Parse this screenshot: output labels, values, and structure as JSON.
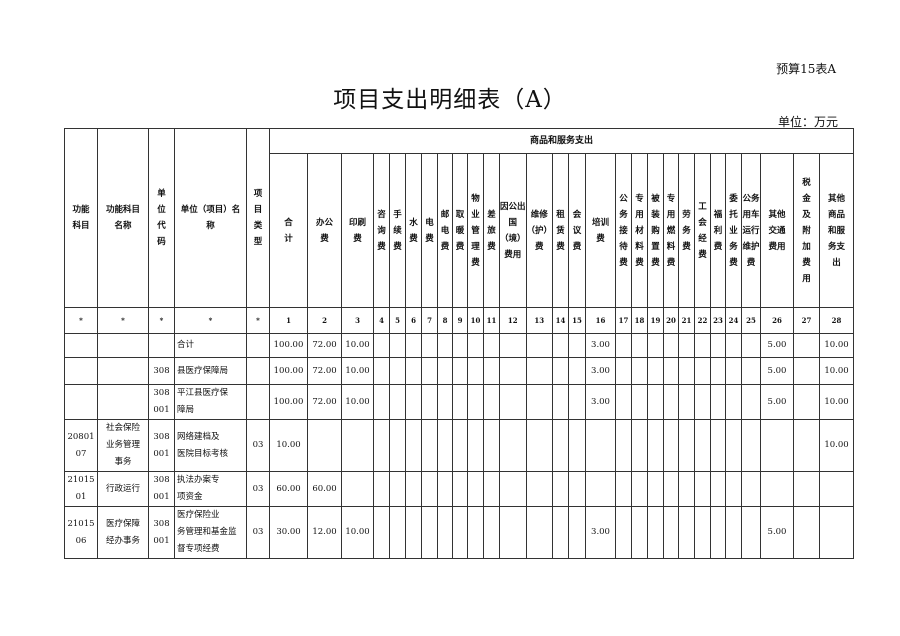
{
  "header": {
    "form_no": "预算15表A",
    "title": "项目支出明细表（A）",
    "unit": "单位：万元"
  },
  "table": {
    "group_label": "商品和服务支出",
    "fixed_headers": [
      "功能\n科目",
      "功能科目\n名称",
      "单\n位\n代\n码",
      "单位（项目）名\n称",
      "项\n目\n类\n型"
    ],
    "expense_headers": [
      "合\n计",
      "办公\n费",
      "印刷\n费",
      "咨询费",
      "手续费",
      "水费",
      "电费",
      "邮电费",
      "取暖费",
      "物业管理费",
      "差旅费",
      "因公出国（境）费用",
      "维修（护）费",
      "租赁费",
      "会议费",
      "培训\n费",
      "公务接待费",
      "专用材料费",
      "被装购置费",
      "专用燃料费",
      "劳务费",
      "工会经费",
      "福利费",
      "委托业务费",
      "公务用车运行维护费",
      "其他\n交通\n费用",
      "税\n金\n及\n附\n加\n费\n用",
      "其他\n商品\n和服\n务支\n出"
    ],
    "number_row": [
      "*",
      "*",
      "*",
      "*",
      "*",
      "1",
      "2",
      "3",
      "4",
      "5",
      "6",
      "7",
      "8",
      "9",
      "10",
      "11",
      "12",
      "13",
      "14",
      "15",
      "16",
      "17",
      "18",
      "19",
      "20",
      "21",
      "22",
      "23",
      "24",
      "25",
      "26",
      "27",
      "28"
    ],
    "rows": [
      {
        "code": "",
        "name": "",
        "unit_code": "",
        "unit_name": "合计",
        "type": "",
        "values": {
          "1": "100.00",
          "2": "72.00",
          "3": "10.00",
          "16": "3.00",
          "26": "5.00",
          "28": "10.00"
        }
      },
      {
        "code": "",
        "name": "",
        "unit_code": "308",
        "unit_name": "县医疗保障局",
        "type": "",
        "values": {
          "1": "100.00",
          "2": "72.00",
          "3": "10.00",
          "16": "3.00",
          "26": "5.00",
          "28": "10.00"
        }
      },
      {
        "code": "",
        "name": "",
        "unit_code": "308\n001",
        "unit_name": "    平江县医疗保\n障局",
        "type": "",
        "values": {
          "1": "100.00",
          "2": "72.00",
          "3": "10.00",
          "16": "3.00",
          "26": "5.00",
          "28": "10.00"
        }
      },
      {
        "code": "20801\n07",
        "name": "社会保险\n业务管理\n事务",
        "unit_code": "308\n001",
        "unit_name": "        网络建档及\n医院目标考核",
        "type": "03",
        "values": {
          "1": "10.00",
          "28": "10.00"
        }
      },
      {
        "code": "21015\n01",
        "name": "行政运行",
        "unit_code": "308\n001",
        "unit_name": "        执法办案专\n项资金",
        "type": "03",
        "values": {
          "1": "60.00",
          "2": "60.00"
        }
      },
      {
        "code": "21015\n06",
        "name": "医疗保障\n经办事务",
        "unit_code": "308\n001",
        "unit_name": "        医疗保险业\n务管理和基金监\n督专项经费",
        "type": "03",
        "values": {
          "1": "30.00",
          "2": "12.00",
          "3": "10.00",
          "16": "3.00",
          "26": "5.00"
        }
      }
    ]
  }
}
